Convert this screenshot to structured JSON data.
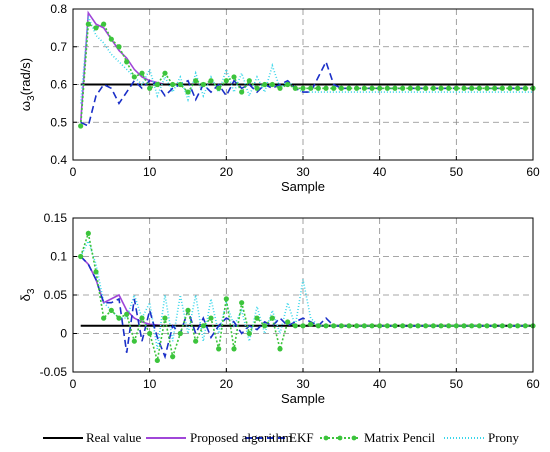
{
  "chart_data": [
    {
      "type": "line",
      "xlabel": "Sample",
      "ylabel_main": "ω",
      "ylabel_sub": "3",
      "ylabel_rest": "(rad/s)",
      "xlim": [
        0,
        60
      ],
      "ylim": [
        0.4,
        0.8
      ],
      "xticks": [
        "0",
        "10",
        "20",
        "30",
        "40",
        "50",
        "60"
      ],
      "yticks": [
        "0.4",
        "0.5",
        "0.6",
        "0.7",
        "0.8"
      ],
      "grid": true,
      "series": [
        {
          "key": "real",
          "color": "#000000",
          "x": [
            1,
            60
          ],
          "y": [
            0.6,
            0.6
          ]
        },
        {
          "key": "proposed",
          "color": "#a046d8",
          "x": [
            1,
            2,
            3,
            4,
            5,
            6,
            7,
            8,
            9,
            10,
            12,
            15,
            20,
            25,
            30,
            40,
            50,
            60
          ],
          "y": [
            0.5,
            0.79,
            0.76,
            0.75,
            0.72,
            0.69,
            0.67,
            0.64,
            0.62,
            0.61,
            0.6,
            0.6,
            0.6,
            0.6,
            0.6,
            0.6,
            0.6,
            0.6
          ]
        },
        {
          "key": "ekf",
          "color": "#1a2fc8",
          "x": [
            1,
            2,
            3,
            4,
            5,
            6,
            7,
            8,
            9,
            10,
            11,
            12,
            13,
            14,
            15,
            16,
            17,
            18,
            19,
            20,
            21,
            22,
            23,
            24,
            25,
            26,
            27,
            28,
            29,
            30,
            31,
            32,
            33,
            34,
            35,
            40,
            50,
            60
          ],
          "y": [
            0.5,
            0.49,
            0.57,
            0.6,
            0.59,
            0.55,
            0.58,
            0.61,
            0.59,
            0.61,
            0.6,
            0.57,
            0.59,
            0.6,
            0.61,
            0.56,
            0.6,
            0.58,
            0.6,
            0.57,
            0.61,
            0.59,
            0.6,
            0.58,
            0.6,
            0.59,
            0.6,
            0.61,
            0.59,
            0.58,
            0.58,
            0.62,
            0.66,
            0.6,
            0.59,
            0.59,
            0.59,
            0.59
          ]
        },
        {
          "key": "pencil",
          "color": "#3cc43c",
          "x": [
            1,
            2,
            3,
            4,
            5,
            6,
            7,
            8,
            9,
            10,
            11,
            12,
            13,
            14,
            15,
            16,
            17,
            18,
            19,
            20,
            21,
            22,
            23,
            24,
            25,
            26,
            27,
            28,
            29,
            30,
            31,
            32,
            33,
            34,
            35,
            36,
            37,
            38,
            39,
            40,
            41,
            42,
            43,
            44,
            45,
            46,
            47,
            48,
            49,
            50,
            51,
            52,
            53,
            54,
            55,
            56,
            57,
            58,
            59,
            60
          ],
          "y": [
            0.49,
            0.76,
            0.75,
            0.76,
            0.72,
            0.7,
            0.66,
            0.62,
            0.63,
            0.59,
            0.6,
            0.63,
            0.6,
            0.6,
            0.58,
            0.61,
            0.6,
            0.61,
            0.59,
            0.61,
            0.62,
            0.58,
            0.61,
            0.59,
            0.6,
            0.6,
            0.59,
            0.6,
            0.59,
            0.59,
            0.59,
            0.59,
            0.59,
            0.59,
            0.59,
            0.59,
            0.59,
            0.59,
            0.59,
            0.59,
            0.59,
            0.59,
            0.59,
            0.59,
            0.59,
            0.59,
            0.59,
            0.59,
            0.59,
            0.59,
            0.59,
            0.59,
            0.59,
            0.59,
            0.59,
            0.59,
            0.59,
            0.59,
            0.59,
            0.59
          ]
        },
        {
          "key": "prony",
          "color": "#38d6ea",
          "x": [
            1,
            2,
            3,
            4,
            5,
            6,
            7,
            8,
            9,
            10,
            11,
            12,
            13,
            14,
            15,
            16,
            17,
            18,
            19,
            20,
            21,
            22,
            23,
            24,
            25,
            26,
            27,
            28,
            29,
            30,
            35,
            40,
            50,
            60
          ],
          "y": [
            0.55,
            0.78,
            0.73,
            0.71,
            0.68,
            0.66,
            0.64,
            0.62,
            0.6,
            0.64,
            0.57,
            0.62,
            0.58,
            0.62,
            0.56,
            0.63,
            0.57,
            0.62,
            0.58,
            0.64,
            0.58,
            0.63,
            0.57,
            0.62,
            0.58,
            0.65,
            0.59,
            0.61,
            0.59,
            0.58,
            0.58,
            0.58,
            0.58,
            0.58
          ]
        }
      ]
    },
    {
      "type": "line",
      "xlabel": "Sample",
      "ylabel_main": "δ",
      "ylabel_sub": "3",
      "ylabel_rest": "",
      "xlim": [
        0,
        60
      ],
      "ylim": [
        -0.05,
        0.15
      ],
      "xticks": [
        "0",
        "10",
        "20",
        "30",
        "40",
        "50",
        "60"
      ],
      "yticks": [
        "-0.05",
        "0",
        "0.05",
        "0.1",
        "0.15"
      ],
      "grid": true,
      "series": [
        {
          "key": "real",
          "color": "#000000",
          "x": [
            1,
            60
          ],
          "y": [
            0.01,
            0.01
          ]
        },
        {
          "key": "proposed",
          "color": "#a046d8",
          "x": [
            1,
            2,
            3,
            4,
            5,
            6,
            7,
            8,
            9,
            10,
            12,
            15,
            20,
            25,
            30,
            40,
            50,
            60
          ],
          "y": [
            0.1,
            0.09,
            0.07,
            0.04,
            0.045,
            0.05,
            0.03,
            0.02,
            0.015,
            0.012,
            0.01,
            0.01,
            0.01,
            0.01,
            0.01,
            0.01,
            0.01,
            0.01
          ]
        },
        {
          "key": "ekf",
          "color": "#1a2fc8",
          "x": [
            1,
            2,
            3,
            4,
            5,
            6,
            7,
            8,
            9,
            10,
            11,
            12,
            13,
            14,
            15,
            16,
            17,
            18,
            19,
            20,
            21,
            22,
            23,
            24,
            25,
            26,
            27,
            28,
            29,
            30,
            31,
            32,
            33,
            34,
            35,
            36,
            40,
            50,
            60
          ],
          "y": [
            0.1,
            0.09,
            0.07,
            0.04,
            0.04,
            0.045,
            -0.025,
            0.045,
            -0.01,
            0.03,
            -0.005,
            -0.03,
            0.01,
            0.0,
            0.03,
            0.0,
            0.02,
            -0.005,
            0.01,
            0.02,
            0.015,
            0.0,
            0.01,
            0.005,
            0.015,
            0.01,
            0.02,
            0.01,
            0.015,
            0.02,
            0.015,
            0.01,
            0.02,
            0.01,
            0.01,
            0.01,
            0.01,
            0.01,
            0.01
          ]
        },
        {
          "key": "pencil",
          "color": "#3cc43c",
          "x": [
            1,
            2,
            3,
            4,
            5,
            6,
            7,
            8,
            9,
            10,
            11,
            12,
            13,
            14,
            15,
            16,
            17,
            18,
            19,
            20,
            21,
            22,
            23,
            24,
            25,
            26,
            27,
            28,
            29,
            30,
            31,
            32,
            33,
            34,
            35,
            36,
            37,
            38,
            39,
            40,
            41,
            42,
            43,
            44,
            45,
            46,
            47,
            48,
            49,
            50,
            51,
            52,
            53,
            54,
            55,
            56,
            57,
            58,
            59,
            60
          ],
          "y": [
            0.1,
            0.13,
            0.08,
            0.02,
            0.03,
            0.02,
            0.025,
            -0.01,
            0.02,
            0.0,
            -0.035,
            0.02,
            -0.03,
            0.0,
            0.03,
            -0.01,
            0.01,
            0.02,
            -0.02,
            0.045,
            -0.02,
            0.04,
            0.0,
            0.02,
            0.01,
            0.02,
            -0.02,
            0.015,
            0.01,
            0.01,
            0.012,
            0.01,
            0.01,
            0.01,
            0.01,
            0.01,
            0.01,
            0.01,
            0.01,
            0.01,
            0.01,
            0.01,
            0.01,
            0.01,
            0.01,
            0.01,
            0.01,
            0.01,
            0.01,
            0.01,
            0.01,
            0.01,
            0.01,
            0.01,
            0.01,
            0.01,
            0.01,
            0.01,
            0.01,
            0.01
          ]
        },
        {
          "key": "prony",
          "color": "#38d6ea",
          "x": [
            1,
            2,
            3,
            4,
            5,
            6,
            7,
            8,
            9,
            10,
            11,
            12,
            13,
            14,
            15,
            16,
            17,
            18,
            19,
            20,
            21,
            22,
            23,
            24,
            25,
            26,
            27,
            28,
            29,
            30,
            31,
            32,
            33,
            34,
            35,
            40,
            50,
            60
          ],
          "y": [
            0.1,
            0.12,
            0.09,
            0.04,
            0.03,
            0.02,
            0.02,
            0.05,
            0.02,
            0.04,
            -0.02,
            0.05,
            -0.01,
            0.05,
            0.0,
            0.05,
            -0.01,
            0.045,
            0.0,
            0.04,
            0.01,
            0.03,
            -0.01,
            0.035,
            0.0,
            0.03,
            0.0,
            0.04,
            0.01,
            0.07,
            0.02,
            0.01,
            0.01,
            0.01,
            0.01,
            0.01,
            0.01,
            0.01
          ]
        }
      ]
    }
  ],
  "legend": [
    {
      "key": "real",
      "label": "Real value",
      "color": "#000000",
      "dash": "",
      "marker": false
    },
    {
      "key": "proposed",
      "label": "Proposed algorithm",
      "color": "#a046d8",
      "dash": "",
      "marker": false
    },
    {
      "key": "ekf",
      "label": "EKF",
      "color": "#1a2fc8",
      "dash": "7,4",
      "marker": false
    },
    {
      "key": "pencil",
      "label": "Matrix Pencil",
      "color": "#3cc43c",
      "dash": "2,2",
      "marker": true
    },
    {
      "key": "prony",
      "label": "Prony",
      "color": "#38d6ea",
      "dash": "1,2",
      "marker": false
    }
  ]
}
